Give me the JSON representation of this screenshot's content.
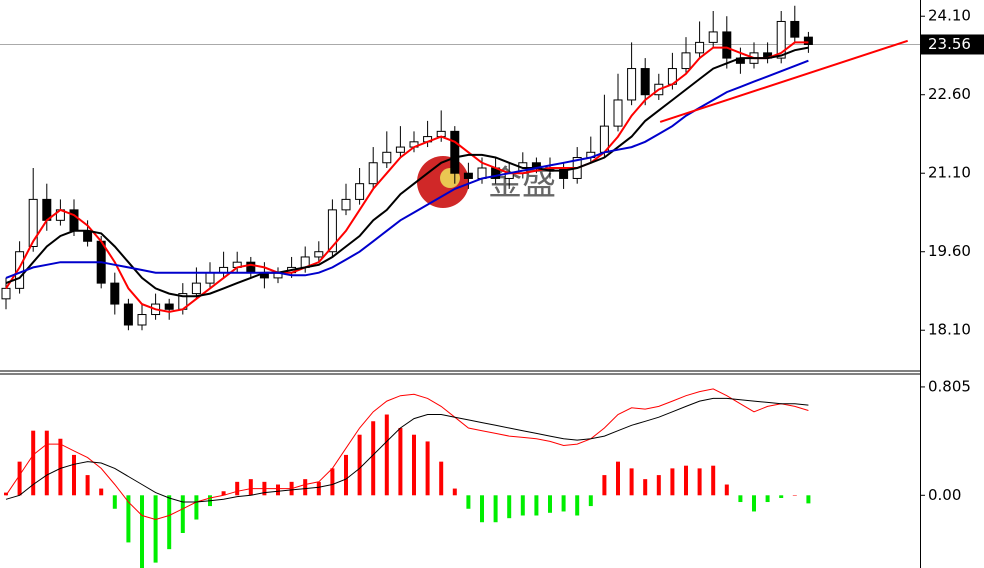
{
  "chart_data": [
    {
      "type": "candlestick",
      "watermark": "金盛",
      "up_color": "#ffffff",
      "down_color": "#000000",
      "open": [
        18.7,
        18.9,
        19.7,
        20.6,
        20.2,
        20.4,
        20.0,
        19.8,
        19.0,
        18.6,
        18.2,
        18.4,
        18.6,
        18.5,
        18.8,
        19.0,
        19.2,
        19.3,
        19.4,
        19.2,
        19.1,
        19.2,
        19.3,
        19.5,
        19.6,
        20.4,
        20.6,
        20.9,
        21.3,
        21.5,
        21.6,
        21.7,
        21.8,
        21.9,
        21.1,
        21.0,
        21.2,
        21.0,
        21.1,
        21.3,
        21.2,
        21.2,
        21.0,
        21.4,
        21.5,
        22.0,
        22.5,
        23.1,
        22.6,
        22.8,
        23.1,
        23.4,
        23.6,
        23.8,
        23.3,
        23.2,
        23.4,
        23.3,
        24.0,
        23.7
      ],
      "high": [
        19.1,
        19.8,
        21.2,
        20.9,
        20.6,
        20.6,
        20.2,
        19.9,
        19.2,
        18.7,
        18.6,
        18.8,
        18.7,
        19.0,
        19.3,
        19.4,
        19.6,
        19.6,
        19.5,
        19.4,
        19.3,
        19.5,
        19.7,
        19.8,
        20.6,
        20.9,
        21.2,
        21.6,
        21.9,
        22.0,
        21.9,
        22.1,
        22.3,
        22.0,
        21.3,
        21.4,
        21.4,
        21.3,
        21.5,
        21.4,
        21.4,
        21.3,
        21.6,
        21.8,
        22.6,
        23.0,
        23.6,
        23.3,
        23.0,
        23.4,
        23.7,
        24.0,
        24.2,
        24.1,
        23.5,
        23.6,
        23.6,
        24.2,
        24.3,
        23.8
      ],
      "low": [
        18.5,
        18.8,
        19.6,
        20.0,
        20.1,
        19.9,
        19.7,
        18.9,
        18.4,
        18.1,
        18.1,
        18.3,
        18.3,
        18.4,
        18.7,
        18.9,
        19.1,
        19.2,
        19.1,
        18.9,
        19.0,
        19.1,
        19.2,
        19.4,
        19.5,
        20.3,
        20.5,
        20.8,
        21.2,
        21.4,
        21.5,
        21.6,
        21.7,
        20.9,
        20.8,
        20.9,
        20.9,
        20.8,
        21.0,
        21.1,
        21.0,
        20.8,
        20.9,
        21.3,
        21.4,
        21.9,
        22.4,
        22.4,
        22.5,
        22.7,
        23.0,
        23.3,
        23.5,
        23.1,
        23.0,
        23.1,
        23.2,
        23.2,
        23.6,
        23.4
      ],
      "close": [
        18.9,
        19.6,
        20.6,
        20.2,
        20.4,
        20.0,
        19.8,
        19.0,
        18.6,
        18.2,
        18.4,
        18.6,
        18.5,
        18.8,
        19.0,
        19.2,
        19.3,
        19.4,
        19.2,
        19.1,
        19.2,
        19.3,
        19.5,
        19.6,
        20.4,
        20.6,
        20.9,
        21.3,
        21.5,
        21.6,
        21.7,
        21.8,
        21.9,
        21.1,
        21.0,
        21.2,
        21.0,
        21.1,
        21.3,
        21.2,
        21.2,
        21.0,
        21.4,
        21.5,
        22.0,
        22.5,
        23.1,
        22.6,
        22.8,
        23.1,
        23.4,
        23.6,
        23.8,
        23.3,
        23.2,
        23.4,
        23.3,
        24.0,
        23.7,
        23.56
      ],
      "series": [
        {
          "color": "#ff0000",
          "values": [
            18.9,
            19.3,
            19.8,
            20.2,
            20.4,
            20.3,
            20.1,
            19.8,
            19.4,
            18.9,
            18.6,
            18.5,
            18.45,
            18.5,
            18.7,
            18.9,
            19.1,
            19.3,
            19.35,
            19.3,
            19.2,
            19.2,
            19.3,
            19.4,
            19.7,
            20.0,
            20.4,
            20.8,
            21.1,
            21.4,
            21.6,
            21.7,
            21.8,
            21.7,
            21.5,
            21.3,
            21.2,
            21.1,
            21.1,
            21.15,
            21.2,
            21.2,
            21.2,
            21.3,
            21.5,
            21.8,
            22.2,
            22.5,
            22.7,
            22.8,
            23.0,
            23.3,
            23.5,
            23.5,
            23.4,
            23.3,
            23.3,
            23.4,
            23.6,
            23.6
          ]
        },
        {
          "color": "#000000",
          "values": [
            19.0,
            19.1,
            19.4,
            19.7,
            19.9,
            20.0,
            20.0,
            19.95,
            19.7,
            19.4,
            19.1,
            18.9,
            18.8,
            18.75,
            18.75,
            18.8,
            18.9,
            19.0,
            19.1,
            19.2,
            19.2,
            19.25,
            19.3,
            19.35,
            19.5,
            19.7,
            19.9,
            20.2,
            20.4,
            20.7,
            20.9,
            21.1,
            21.3,
            21.4,
            21.45,
            21.45,
            21.4,
            21.3,
            21.2,
            21.2,
            21.15,
            21.15,
            21.2,
            21.3,
            21.4,
            21.6,
            21.8,
            22.1,
            22.3,
            22.5,
            22.7,
            22.9,
            23.1,
            23.2,
            23.3,
            23.3,
            23.3,
            23.35,
            23.45,
            23.5
          ]
        },
        {
          "color": "#0000cc",
          "values": [
            19.1,
            19.2,
            19.3,
            19.35,
            19.4,
            19.4,
            19.4,
            19.4,
            19.35,
            19.3,
            19.25,
            19.2,
            19.2,
            19.2,
            19.2,
            19.2,
            19.2,
            19.2,
            19.2,
            19.2,
            19.2,
            19.15,
            19.15,
            19.2,
            19.3,
            19.45,
            19.6,
            19.8,
            20.0,
            20.2,
            20.35,
            20.5,
            20.65,
            20.8,
            20.9,
            21.0,
            21.05,
            21.1,
            21.15,
            21.2,
            21.25,
            21.3,
            21.35,
            21.4,
            21.5,
            21.55,
            21.6,
            21.7,
            21.85,
            22.0,
            22.2,
            22.35,
            22.5,
            22.65,
            22.75,
            22.85,
            22.95,
            23.05,
            23.15,
            23.25
          ]
        }
      ],
      "trendline": {
        "color": "#ff0000",
        "x": [
          48.1,
          66.3
        ],
        "y": [
          22.08,
          23.63
        ]
      },
      "last_price": {
        "value": 23.56,
        "label": "23.56"
      },
      "ylim": [
        17.34,
        24.41
      ],
      "yticks": [
        {
          "value": 24.1,
          "label": "24.10"
        },
        {
          "value": 22.6,
          "label": "22.60"
        },
        {
          "value": 21.1,
          "label": "21.10"
        },
        {
          "value": 19.6,
          "label": "19.60"
        },
        {
          "value": 18.1,
          "label": "18.10"
        }
      ]
    },
    {
      "type": "macd",
      "positive_color": "#ff0000",
      "negative_color": "#00ee00",
      "values": [
        0.02,
        0.25,
        0.48,
        0.48,
        0.42,
        0.3,
        0.15,
        0.05,
        -0.1,
        -0.35,
        -0.55,
        -0.5,
        -0.4,
        -0.28,
        -0.18,
        -0.08,
        0.03,
        0.1,
        0.12,
        0.1,
        0.08,
        0.1,
        0.12,
        0.1,
        0.2,
        0.3,
        0.45,
        0.55,
        0.6,
        0.5,
        0.45,
        0.4,
        0.25,
        0.05,
        -0.1,
        -0.2,
        -0.2,
        -0.17,
        -0.15,
        -0.15,
        -0.13,
        -0.12,
        -0.15,
        -0.08,
        0.15,
        0.25,
        0.2,
        0.12,
        0.15,
        0.2,
        0.22,
        0.2,
        0.22,
        0.08,
        -0.05,
        -0.12,
        -0.05,
        -0.02,
        0.0,
        -0.06
      ],
      "series": [
        {
          "color": "#ff0000",
          "values": [
            0.0,
            0.15,
            0.3,
            0.38,
            0.38,
            0.33,
            0.28,
            0.2,
            0.08,
            -0.05,
            -0.15,
            -0.18,
            -0.15,
            -0.1,
            -0.05,
            -0.02,
            0.0,
            0.03,
            0.05,
            0.05,
            0.05,
            0.05,
            0.08,
            0.1,
            0.2,
            0.35,
            0.5,
            0.62,
            0.7,
            0.74,
            0.75,
            0.72,
            0.66,
            0.58,
            0.5,
            0.48,
            0.46,
            0.44,
            0.43,
            0.42,
            0.4,
            0.37,
            0.38,
            0.42,
            0.5,
            0.6,
            0.65,
            0.64,
            0.66,
            0.7,
            0.74,
            0.77,
            0.79,
            0.74,
            0.68,
            0.62,
            0.66,
            0.68,
            0.66,
            0.63
          ]
        },
        {
          "color": "#000000",
          "values": [
            -0.03,
            0.0,
            0.08,
            0.15,
            0.2,
            0.23,
            0.25,
            0.24,
            0.2,
            0.14,
            0.08,
            0.02,
            -0.02,
            -0.05,
            -0.05,
            -0.04,
            -0.03,
            -0.01,
            0.0,
            0.02,
            0.03,
            0.04,
            0.05,
            0.06,
            0.08,
            0.12,
            0.2,
            0.3,
            0.4,
            0.5,
            0.57,
            0.6,
            0.6,
            0.58,
            0.56,
            0.54,
            0.52,
            0.5,
            0.48,
            0.46,
            0.44,
            0.42,
            0.41,
            0.42,
            0.44,
            0.48,
            0.52,
            0.55,
            0.58,
            0.62,
            0.66,
            0.7,
            0.72,
            0.72,
            0.71,
            0.7,
            0.69,
            0.68,
            0.68,
            0.67
          ]
        }
      ],
      "ylim": [
        -0.54,
        0.901
      ],
      "yticks": [
        0.805,
        {
          "value": 0,
          "label": "0.00"
        }
      ]
    }
  ]
}
